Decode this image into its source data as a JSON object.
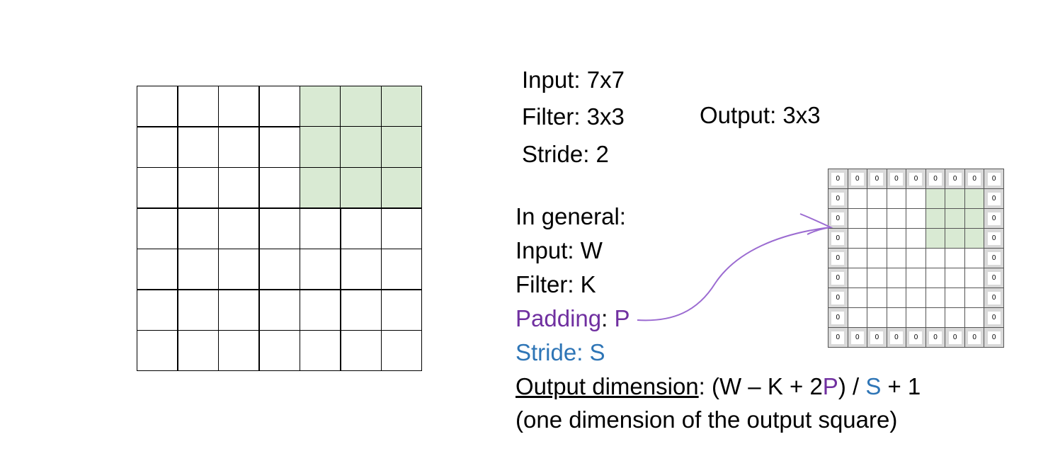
{
  "input_grid": {
    "size": 7,
    "highlight": {
      "rows": [
        0,
        1,
        2
      ],
      "cols": [
        4,
        5,
        6
      ],
      "color": "#d9ead3"
    }
  },
  "top_text": {
    "input": "Input: 7x7",
    "filter": "Filter: 3x3",
    "stride": "Stride: 2",
    "output": "Output: 3x3"
  },
  "general": {
    "heading": "In general:",
    "input": "Input: W",
    "filter": "Filter: K",
    "padding_label": "Padding",
    "padding_sep": ": ",
    "padding_var": "P",
    "stride": "Stride: S",
    "output_label": "Output dimension",
    "formula_a": ": (W – K + 2",
    "formula_p": "P",
    "formula_b": ") / ",
    "formula_s": "S",
    "formula_c": " + 1",
    "note": "(one dimension of the output square)"
  },
  "padded_grid": {
    "size": 9,
    "pad_value": "0",
    "pad_color": "#d9d9d9",
    "highlight": {
      "rows": [
        1,
        2,
        3
      ],
      "cols": [
        5,
        6,
        7
      ],
      "color": "#d9ead3"
    }
  },
  "colors": {
    "padding": "#7030a0",
    "stride": "#2e75b6",
    "arrow": "#9b6bd1"
  }
}
